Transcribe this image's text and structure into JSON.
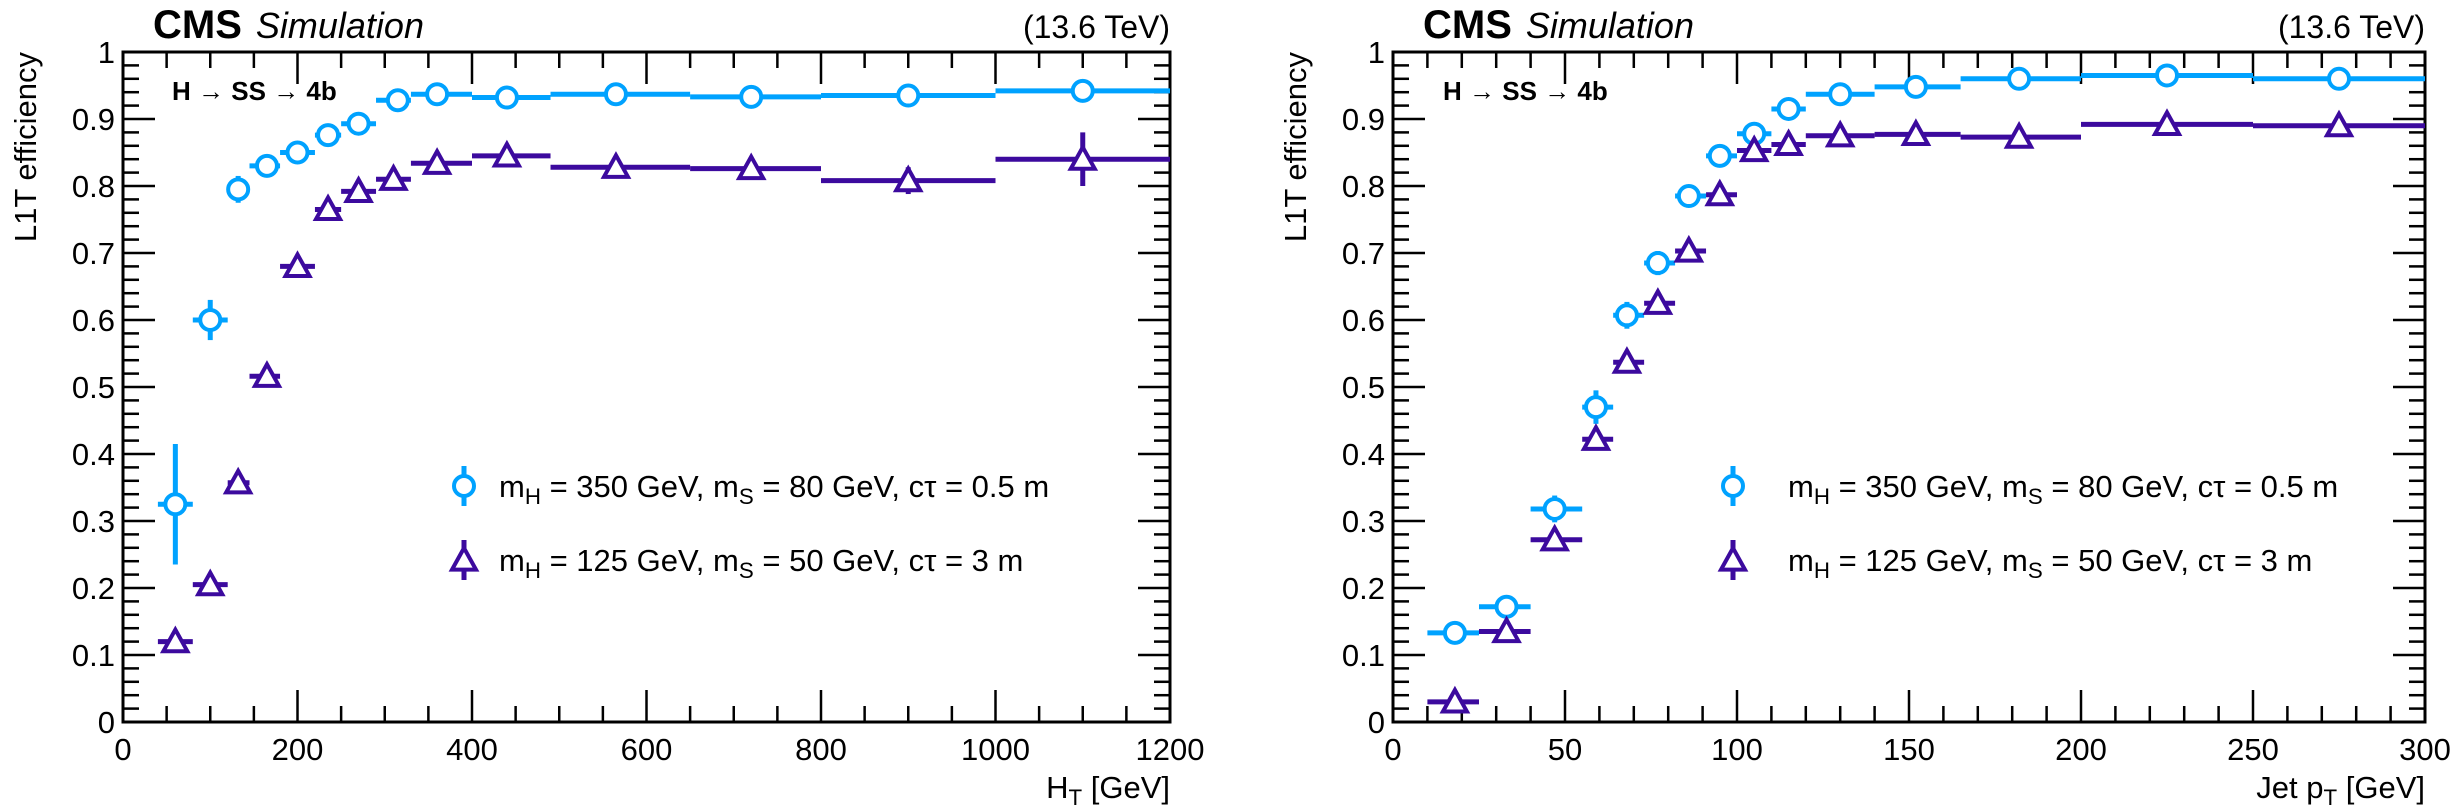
{
  "colors": {
    "series1": "#00A2FF",
    "series2": "#3C0A9E",
    "axis": "#000000"
  },
  "chart_data": [
    {
      "type": "scatter",
      "header_left_bold": "CMS",
      "header_left_italic": "Simulation",
      "header_right": "(13.6 TeV)",
      "annotation": "H → SS → 4b",
      "ylabel": "L1T efficiency",
      "xlabel": [
        {
          "t": "H"
        },
        {
          "sub": "T"
        },
        {
          "t": " [GeV]"
        }
      ],
      "xlim": [
        0,
        1200
      ],
      "ylim": [
        0,
        1
      ],
      "xmajor": 200,
      "xminor": 50,
      "ymajor": 0.1,
      "yminor": 0.02,
      "xticklabels": [
        "0",
        "200",
        "400",
        "600",
        "800",
        "1000",
        "1200"
      ],
      "yticklabels": [
        "0",
        "0.1",
        "0.2",
        "0.3",
        "0.4",
        "0.5",
        "0.6",
        "0.7",
        "0.8",
        "0.9",
        "1"
      ],
      "legend_placement": "center-right",
      "series": [
        {
          "name": [
            {
              "t": "m"
            },
            {
              "sub": "H"
            },
            {
              "t": " = 350 GeV, m"
            },
            {
              "sub": "S"
            },
            {
              "t": " = 80 GeV, cτ = 0.5 m"
            }
          ],
          "marker": "circle",
          "color": "#00A2FF",
          "points": [
            [
              60,
              40,
              80,
              0.325,
              0.09
            ],
            [
              100,
              80,
              120,
              0.6,
              0.03
            ],
            [
              132,
              120,
              145,
              0.795,
              0.02
            ],
            [
              165,
              145,
              180,
              0.83,
              0.01
            ],
            [
              200,
              180,
              220,
              0.85,
              0.008
            ],
            [
              235,
              220,
              250,
              0.876,
              0.008
            ],
            [
              270,
              250,
              290,
              0.893,
              0.007
            ],
            [
              315,
              290,
              330,
              0.928,
              0.006
            ],
            [
              360,
              330,
              400,
              0.937,
              0.005
            ],
            [
              440,
              400,
              490,
              0.932,
              0.005
            ],
            [
              565,
              490,
              650,
              0.937,
              0.005
            ],
            [
              720,
              650,
              800,
              0.933,
              0.006
            ],
            [
              900,
              800,
              1000,
              0.935,
              0.008
            ],
            [
              1100,
              1000,
              1200,
              0.942,
              0.015
            ]
          ]
        },
        {
          "name": [
            {
              "t": "m"
            },
            {
              "sub": "H"
            },
            {
              "t": " = 125 GeV, m"
            },
            {
              "sub": "S"
            },
            {
              "t": " = 50 GeV, cτ = 3 m"
            }
          ],
          "marker": "triangle",
          "color": "#3C0A9E",
          "points": [
            [
              60,
              40,
              80,
              0.12,
              0.006
            ],
            [
              100,
              80,
              120,
              0.205,
              0.006
            ],
            [
              132,
              120,
              145,
              0.357,
              0.008
            ],
            [
              165,
              145,
              180,
              0.516,
              0.008
            ],
            [
              200,
              180,
              220,
              0.68,
              0.008
            ],
            [
              235,
              220,
              250,
              0.765,
              0.008
            ],
            [
              270,
              250,
              290,
              0.792,
              0.008
            ],
            [
              310,
              290,
              330,
              0.81,
              0.008
            ],
            [
              360,
              330,
              400,
              0.834,
              0.008
            ],
            [
              440,
              400,
              490,
              0.845,
              0.008
            ],
            [
              565,
              490,
              650,
              0.828,
              0.008
            ],
            [
              720,
              650,
              800,
              0.826,
              0.01
            ],
            [
              900,
              800,
              1000,
              0.808,
              0.02
            ],
            [
              1100,
              1000,
              1200,
              0.84,
              0.04
            ]
          ]
        }
      ]
    },
    {
      "type": "scatter",
      "header_left_bold": "CMS",
      "header_left_italic": "Simulation",
      "header_right": "(13.6 TeV)",
      "annotation": "H → SS → 4b",
      "ylabel": "L1T efficiency",
      "xlabel": [
        {
          "t": "Jet p"
        },
        {
          "sub": "T"
        },
        {
          "t": " [GeV]"
        }
      ],
      "xlim": [
        0,
        300
      ],
      "ylim": [
        0,
        1
      ],
      "xmajor": 50,
      "xminor": 10,
      "ymajor": 0.1,
      "yminor": 0.02,
      "xticklabels": [
        "0",
        "50",
        "100",
        "150",
        "200",
        "250",
        "300"
      ],
      "yticklabels": [
        "0",
        "0.1",
        "0.2",
        "0.3",
        "0.4",
        "0.5",
        "0.6",
        "0.7",
        "0.8",
        "0.9",
        "1"
      ],
      "legend_placement": "center-right",
      "series": [
        {
          "name": [
            {
              "t": "m"
            },
            {
              "sub": "H"
            },
            {
              "t": " = 350 GeV, m"
            },
            {
              "sub": "S"
            },
            {
              "t": " = 80 GeV, cτ = 0.5 m"
            }
          ],
          "marker": "circle",
          "color": "#00A2FF",
          "points": [
            [
              18,
              10,
              25,
              0.133,
              0.008
            ],
            [
              33,
              25,
              40,
              0.172,
              0.015
            ],
            [
              47,
              40,
              55,
              0.318,
              0.02
            ],
            [
              59,
              55,
              64,
              0.47,
              0.025
            ],
            [
              68,
              64,
              73,
              0.607,
              0.02
            ],
            [
              77,
              73,
              82,
              0.685,
              0.018
            ],
            [
              86,
              82,
              91,
              0.785,
              0.015
            ],
            [
              95,
              91,
              100,
              0.845,
              0.012
            ],
            [
              105,
              100,
              110,
              0.878,
              0.01
            ],
            [
              115,
              110,
              120,
              0.915,
              0.008
            ],
            [
              130,
              120,
              140,
              0.937,
              0.006
            ],
            [
              152,
              140,
              165,
              0.948,
              0.005
            ],
            [
              182,
              165,
              200,
              0.96,
              0.005
            ],
            [
              225,
              200,
              250,
              0.965,
              0.005
            ],
            [
              275,
              250,
              300,
              0.96,
              0.006
            ]
          ]
        },
        {
          "name": [
            {
              "t": "m"
            },
            {
              "sub": "H"
            },
            {
              "t": " = 125 GeV, m"
            },
            {
              "sub": "S"
            },
            {
              "t": " = 50 GeV, cτ = 3 m"
            }
          ],
          "marker": "triangle",
          "color": "#3C0A9E",
          "points": [
            [
              18,
              10,
              25,
              0.03,
              0.005
            ],
            [
              33,
              25,
              40,
              0.135,
              0.008
            ],
            [
              47,
              40,
              55,
              0.272,
              0.01
            ],
            [
              59,
              55,
              64,
              0.422,
              0.012
            ],
            [
              68,
              64,
              73,
              0.537,
              0.01
            ],
            [
              77,
              73,
              82,
              0.625,
              0.01
            ],
            [
              86,
              82,
              91,
              0.703,
              0.01
            ],
            [
              95,
              91,
              100,
              0.787,
              0.01
            ],
            [
              105,
              100,
              110,
              0.853,
              0.01
            ],
            [
              115,
              110,
              120,
              0.862,
              0.01
            ],
            [
              130,
              120,
              140,
              0.875,
              0.01
            ],
            [
              152,
              140,
              165,
              0.877,
              0.01
            ],
            [
              182,
              165,
              200,
              0.873,
              0.01
            ],
            [
              225,
              200,
              250,
              0.892,
              0.01
            ],
            [
              275,
              250,
              300,
              0.89,
              0.015
            ]
          ]
        }
      ]
    }
  ]
}
